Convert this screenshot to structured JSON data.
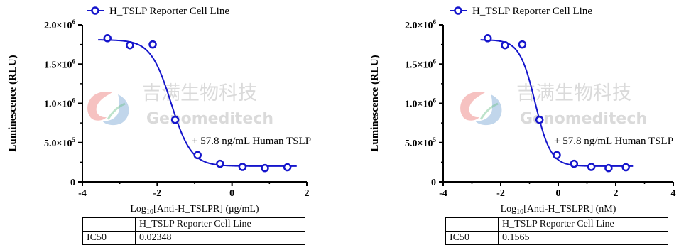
{
  "watermark": {
    "cn": "吉满生物科技",
    "en": "Genomeditech",
    "colors": {
      "logo_red": "#e2403e",
      "logo_blue": "#3d7fc1",
      "logo_green": "#6cc18c",
      "text": "#bdbdbd"
    }
  },
  "chart_data": [
    {
      "type": "scatter",
      "fit": "four-parameter logistic",
      "color": "#1515cc",
      "legend": "H_TSLP Reporter Cell Line",
      "annotation": "+ 57.8 ng/mL Human TSLP",
      "ylabel": "Luminescence (RLU)",
      "xlabel_prefix": "Log",
      "xlabel_sub": "10",
      "xlabel_suffix": "[Anti-H_TSLPR] (μg/mL)",
      "xlim": [
        -4,
        2
      ],
      "ylim": [
        0,
        2000000
      ],
      "xticks": [
        "-4",
        "-2",
        "0",
        "2"
      ],
      "yticks": [
        {
          "base": "0",
          "exp": ""
        },
        {
          "base": "5.0×10",
          "exp": "5"
        },
        {
          "base": "1.0×10",
          "exp": "6"
        },
        {
          "base": "1.5×10",
          "exp": "6"
        },
        {
          "base": "2.0×10",
          "exp": "6"
        }
      ],
      "points": [
        {
          "x": -3.33,
          "y": 1830000
        },
        {
          "x": -2.73,
          "y": 1740000
        },
        {
          "x": -2.12,
          "y": 1750000
        },
        {
          "x": -1.52,
          "y": 790000
        },
        {
          "x": -0.92,
          "y": 340000
        },
        {
          "x": -0.32,
          "y": 230000
        },
        {
          "x": 0.28,
          "y": 190000
        },
        {
          "x": 0.88,
          "y": 175000
        },
        {
          "x": 1.48,
          "y": 185000
        }
      ],
      "curve": {
        "top": 1810000,
        "bottom": 200000,
        "logIC50": -1.63,
        "hill": 1.6
      },
      "table": {
        "header": "H_TSLP Reporter Cell Line",
        "row_label": "IC50",
        "row_value": "0.02348"
      }
    },
    {
      "type": "scatter",
      "fit": "four-parameter logistic",
      "color": "#1515cc",
      "legend": "H_TSLP Reporter Cell Line",
      "annotation": "+ 57.8 ng/mL Human TSLP",
      "ylabel": "Luminescence (RLU)",
      "xlabel_prefix": "Log",
      "xlabel_sub": "10",
      "xlabel_suffix": "[Anti-H_TSLPR] (nM)",
      "xlim": [
        -4,
        4
      ],
      "ylim": [
        0,
        2000000
      ],
      "xticks": [
        "-4",
        "-2",
        "0",
        "2",
        "4"
      ],
      "yticks": [
        {
          "base": "0",
          "exp": ""
        },
        {
          "base": "5.0×10",
          "exp": "5"
        },
        {
          "base": "1.0×10",
          "exp": "6"
        },
        {
          "base": "1.5×10",
          "exp": "6"
        },
        {
          "base": "2.0×10",
          "exp": "6"
        }
      ],
      "points": [
        {
          "x": -2.45,
          "y": 1830000
        },
        {
          "x": -1.85,
          "y": 1740000
        },
        {
          "x": -1.25,
          "y": 1750000
        },
        {
          "x": -0.65,
          "y": 790000
        },
        {
          "x": -0.05,
          "y": 340000
        },
        {
          "x": 0.55,
          "y": 230000
        },
        {
          "x": 1.15,
          "y": 190000
        },
        {
          "x": 1.75,
          "y": 175000
        },
        {
          "x": 2.35,
          "y": 185000
        }
      ],
      "curve": {
        "top": 1810000,
        "bottom": 200000,
        "logIC50": -0.8,
        "hill": 1.6
      },
      "table": {
        "header": "H_TSLP Reporter Cell Line",
        "row_label": "IC50",
        "row_value": "0.1565"
      }
    }
  ]
}
